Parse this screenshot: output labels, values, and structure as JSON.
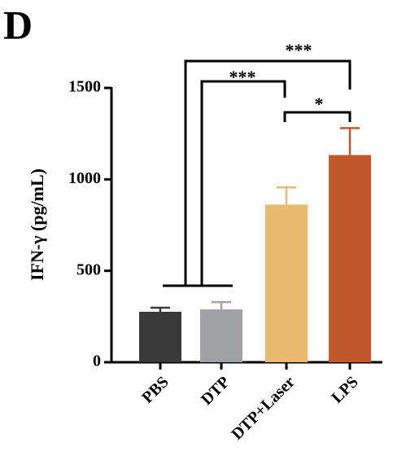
{
  "panel_label": "D",
  "chart_data": {
    "type": "bar",
    "y_label": "IFN-γ (pg/mL)",
    "categories": [
      "PBS",
      "DTP",
      "DTP+Laser",
      "LPS"
    ],
    "values": [
      276,
      289,
      862,
      1133
    ],
    "errors": [
      22,
      40,
      94,
      147
    ],
    "colors": [
      "#3a3a3a",
      "#a1a2a6",
      "#e9ba6f",
      "#c0582b"
    ],
    "ylim": [
      0,
      1500
    ],
    "yticks": [
      0,
      500,
      1000,
      1500
    ],
    "annotations": [
      "***",
      "***",
      "*"
    ]
  }
}
